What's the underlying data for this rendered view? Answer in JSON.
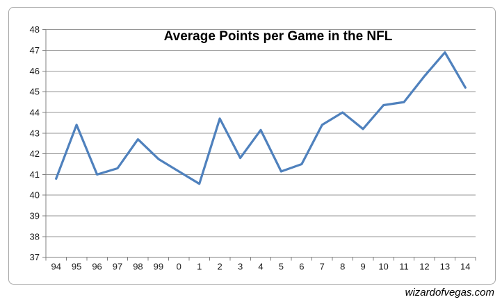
{
  "chart_data": {
    "type": "line",
    "title": "Average Points per Game in the NFL",
    "categories": [
      "94",
      "95",
      "96",
      "97",
      "98",
      "99",
      "0",
      "1",
      "2",
      "3",
      "4",
      "5",
      "6",
      "7",
      "8",
      "9",
      "10",
      "11",
      "12",
      "13",
      "14"
    ],
    "values": [
      40.8,
      43.4,
      41.0,
      41.3,
      42.7,
      41.75,
      41.15,
      40.55,
      43.7,
      41.8,
      43.15,
      41.15,
      41.5,
      43.4,
      44.0,
      43.2,
      44.35,
      44.5,
      45.75,
      46.9,
      45.2
    ],
    "xlabel": "",
    "ylabel": "",
    "ylim": [
      37,
      48
    ],
    "yticks": [
      37,
      38,
      39,
      40,
      41,
      42,
      43,
      44,
      45,
      46,
      47,
      48
    ],
    "grid": true,
    "legend": "none",
    "line_color": "#4F81BD",
    "gridline_color": "#969696",
    "axis_color": "#808080",
    "text_color": "#1a1a1a",
    "title_color": "#000000",
    "frame_border_color": "#a6a6a6"
  },
  "watermark": {
    "text": "wizardofvegas.com"
  }
}
